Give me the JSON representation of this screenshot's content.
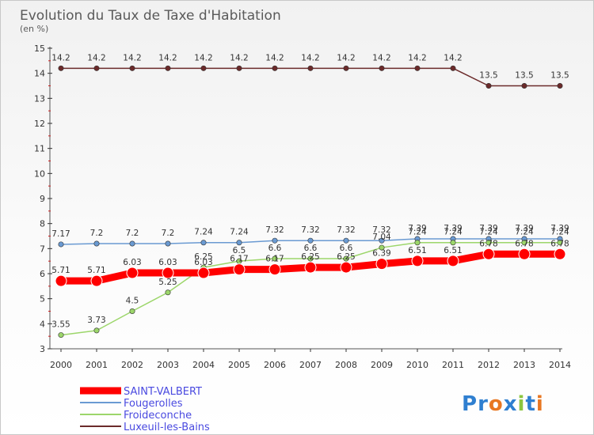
{
  "chart_data": {
    "type": "line",
    "title": "Evolution du Taux de Taxe d'Habitation",
    "subtitle": "(en %)",
    "x": [
      "2000",
      "2001",
      "2002",
      "2003",
      "2004",
      "2005",
      "2006",
      "2007",
      "2008",
      "2009",
      "2010",
      "2011",
      "2012",
      "2013",
      "2014"
    ],
    "ylim": [
      3,
      15
    ],
    "yticks": [
      3,
      4,
      5,
      6,
      7,
      8,
      9,
      10,
      11,
      12,
      13,
      14,
      15
    ],
    "grid": false,
    "legend_position": "bottom-left",
    "series": [
      {
        "name": "Luxeuil-les-Bains",
        "color": "#6b2a2a",
        "values": [
          14.2,
          14.2,
          14.2,
          14.2,
          14.2,
          14.2,
          14.2,
          14.2,
          14.2,
          14.2,
          14.2,
          14.2,
          13.5,
          13.5,
          13.5
        ],
        "labels": [
          "14.2",
          "14.2",
          "14.2",
          "14.2",
          "14.2",
          "14.2",
          "14.2",
          "14.2",
          "14.2",
          "14.2",
          "14.2",
          "14.2",
          "13.5",
          "13.5",
          "13.5"
        ]
      },
      {
        "name": "Fougerolles",
        "color": "#6a9ad2",
        "values": [
          7.17,
          7.2,
          7.2,
          7.2,
          7.24,
          7.24,
          7.32,
          7.32,
          7.32,
          7.32,
          7.39,
          7.39,
          7.39,
          7.39,
          7.39
        ],
        "labels": [
          "7.17",
          "7.2",
          "7.2",
          "7.2",
          "7.24",
          "7.24",
          "7.32",
          "7.32",
          "7.32",
          "7.32",
          "7.39",
          "7.39",
          "7.39",
          "7.39",
          "7.39"
        ]
      },
      {
        "name": "Froideconche",
        "color": "#9cd66a",
        "values": [
          3.55,
          3.73,
          4.5,
          5.25,
          6.25,
          6.5,
          6.6,
          6.6,
          6.6,
          7.04,
          7.24,
          7.24,
          7.24,
          7.24,
          7.24
        ],
        "labels": [
          "3.55",
          "3.73",
          "4.5",
          "5.25",
          "6.25",
          "6.5",
          "6.6",
          "6.6",
          "6.6",
          "7.04",
          "7.24",
          "7.24",
          "7.24",
          "7.24",
          "7.24"
        ]
      },
      {
        "name": "SAINT-VALBERT",
        "color": "#ff0000",
        "values": [
          5.71,
          5.71,
          6.03,
          6.03,
          6.03,
          6.17,
          6.17,
          6.25,
          6.25,
          6.39,
          6.51,
          6.51,
          6.78,
          6.78,
          6.78
        ],
        "labels": [
          "5.71",
          "5.71",
          "6.03",
          "6.03",
          "6.03",
          "6.17",
          "6.17",
          "6.25",
          "6.25",
          "6.39",
          "6.51",
          "6.51",
          "6.78",
          "6.78",
          "6.78"
        ]
      }
    ]
  },
  "legend": {
    "items": [
      {
        "label": "SAINT-VALBERT",
        "color": "#ff0000"
      },
      {
        "label": "Fougerolles",
        "color": "#6a9ad2"
      },
      {
        "label": "Froideconche",
        "color": "#9cd66a"
      },
      {
        "label": "Luxeuil-les-Bains",
        "color": "#6b2a2a"
      }
    ]
  },
  "brand": {
    "logo_text": "Proxiti",
    "letter_colors": [
      "#2f7fd0",
      "#2f7fd0",
      "#e87722",
      "#2f7fd0",
      "#8cc63f",
      "#2f7fd0",
      "#e87722"
    ]
  }
}
